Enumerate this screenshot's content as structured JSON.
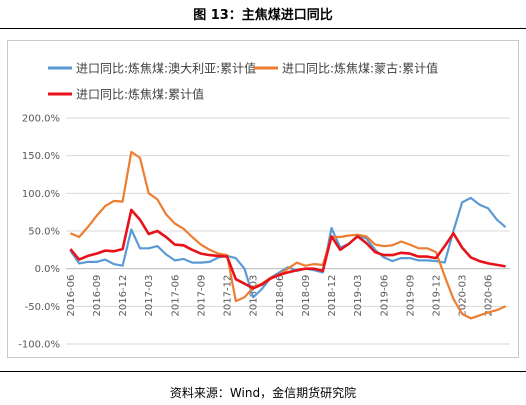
{
  "figure": {
    "title": "图 13：主焦煤进口同比",
    "source": "资料来源：Wind，金信期货研究院"
  },
  "chart_data": {
    "type": "line",
    "title": "",
    "xlabel": "",
    "ylabel": "",
    "ylim": [
      -100,
      200
    ],
    "yticks": [
      -100,
      -50,
      0,
      50,
      100,
      150,
      200
    ],
    "ytick_format": "percent_1dp",
    "grid": "horizontal",
    "legend_position": "top",
    "x": [
      "2016-06",
      "2016-07",
      "2016-08",
      "2016-09",
      "2016-10",
      "2016-11",
      "2016-12",
      "2017-01",
      "2017-02",
      "2017-03",
      "2017-04",
      "2017-05",
      "2017-06",
      "2017-07",
      "2017-08",
      "2017-09",
      "2017-10",
      "2017-11",
      "2017-12",
      "2018-01",
      "2018-02",
      "2018-03",
      "2018-04",
      "2018-05",
      "2018-06",
      "2018-07",
      "2018-08",
      "2018-09",
      "2018-10",
      "2018-11",
      "2018-12",
      "2019-01",
      "2019-02",
      "2019-03",
      "2019-04",
      "2019-05",
      "2019-06",
      "2019-07",
      "2019-08",
      "2019-09",
      "2019-10",
      "2019-11",
      "2019-12",
      "2020-01",
      "2020-02",
      "2020-03",
      "2020-04",
      "2020-05",
      "2020-06",
      "2020-07",
      "2020-08"
    ],
    "xtick_labels": [
      "2016-06",
      "2016-09",
      "2016-12",
      "2017-03",
      "2017-06",
      "2017-09",
      "2017-12",
      "2018-03",
      "2018-06",
      "2018-09",
      "2018-12",
      "2019-03",
      "2019-06",
      "2019-09",
      "2019-12",
      "2020-03",
      "2020-06"
    ],
    "series": [
      {
        "name": "进口同比:炼焦煤:澳大利亚:累计值",
        "color": "#5b9bd5",
        "values": [
          24,
          7,
          9,
          9,
          12,
          6,
          4,
          52,
          27,
          27,
          30,
          19,
          11,
          13,
          8,
          8,
          9,
          15,
          17,
          14,
          0,
          -38,
          -27,
          -12,
          -5,
          2,
          -3,
          0,
          -2,
          -5,
          54,
          28,
          33,
          44,
          40,
          25,
          15,
          10,
          14,
          14,
          11,
          11,
          10,
          8,
          50,
          88,
          94,
          85,
          80,
          65,
          55
        ]
      },
      {
        "name": "进口同比:炼焦煤:蒙古:累计值",
        "color": "#ed7d31",
        "values": [
          47,
          42,
          55,
          70,
          83,
          90,
          89,
          155,
          147,
          100,
          92,
          72,
          60,
          53,
          42,
          32,
          25,
          20,
          18,
          -43,
          -38,
          -25,
          -20,
          -12,
          -8,
          0,
          8,
          4,
          6,
          5,
          42,
          42,
          44,
          45,
          43,
          32,
          30,
          31,
          36,
          32,
          27,
          27,
          22,
          -10,
          -40,
          -60,
          -66,
          -62,
          -58,
          -55,
          -50
        ]
      },
      {
        "name": "进口同比:炼焦煤:累计值",
        "color": "#e8121b",
        "values": [
          26,
          12,
          17,
          20,
          24,
          23,
          26,
          78,
          65,
          46,
          50,
          42,
          32,
          31,
          25,
          20,
          18,
          17,
          16,
          -14,
          -20,
          -26,
          -21,
          -13,
          -8,
          -5,
          -2,
          0,
          0,
          -3,
          43,
          25,
          33,
          43,
          34,
          22,
          18,
          18,
          21,
          20,
          16,
          16,
          14,
          30,
          47,
          28,
          15,
          10,
          7,
          5,
          3
        ]
      }
    ]
  }
}
